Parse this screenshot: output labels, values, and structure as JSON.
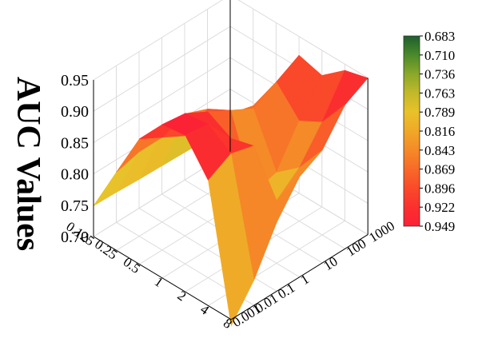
{
  "chart_data": {
    "type": "surface3d",
    "zlabel": "AUC Values",
    "x_axis": {
      "ticks": [
        "0.125",
        "0.25",
        "0.5",
        "1",
        "2",
        "4",
        "8"
      ]
    },
    "y_axis": {
      "ticks": [
        "0.001",
        "0.01",
        "0.1",
        "1",
        "10",
        "100",
        "1000"
      ]
    },
    "z_axis": {
      "range": [
        0.7,
        0.95
      ],
      "ticks": [
        "0.70",
        "0.75",
        "0.80",
        "0.85",
        "0.90",
        "0.95"
      ]
    },
    "z_values": [
      [
        0.749,
        0.748,
        0.746,
        0.745,
        0.744,
        0.743,
        0.742
      ],
      [
        0.825,
        0.835,
        0.845,
        0.85,
        0.79,
        0.77,
        0.76
      ],
      [
        0.9,
        0.88,
        0.86,
        0.88,
        0.85,
        0.84,
        0.83
      ],
      [
        0.945,
        0.94,
        0.92,
        0.9,
        0.88,
        0.9,
        0.92
      ],
      [
        0.95,
        0.945,
        0.9,
        0.79,
        0.8,
        0.86,
        0.91
      ],
      [
        0.9,
        0.92,
        0.91,
        0.8,
        0.83,
        0.88,
        0.94
      ],
      [
        0.69,
        0.74,
        0.81,
        0.86,
        0.88,
        0.93,
        0.95
      ]
    ],
    "colorbar": {
      "labels": [
        "0.683",
        "0.710",
        "0.736",
        "0.763",
        "0.789",
        "0.816",
        "0.843",
        "0.869",
        "0.896",
        "0.922",
        "0.949"
      ],
      "colors": [
        "#1e5e2e",
        "#4a8a2a",
        "#8aa82a",
        "#c2b82a",
        "#e8c22a",
        "#f0a828",
        "#f58a28",
        "#f86a28",
        "#fa4a2a",
        "#fb302e",
        "#fc2036"
      ]
    },
    "grid": true
  }
}
